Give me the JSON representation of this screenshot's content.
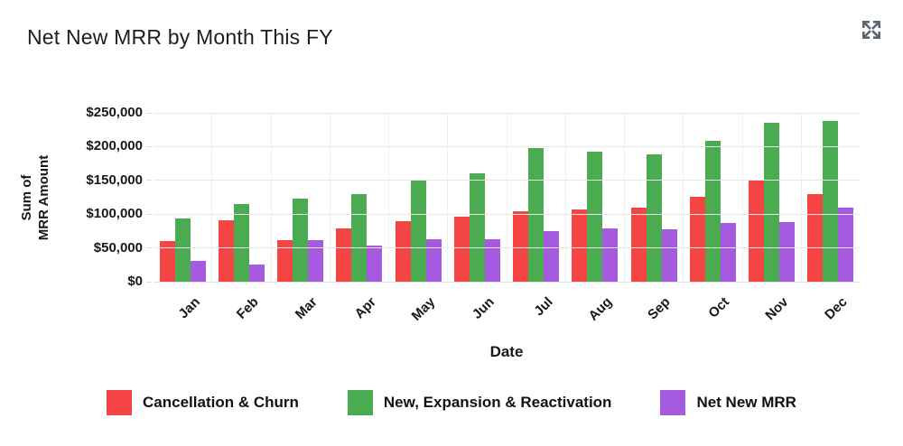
{
  "header": {
    "title": "Net New MRR by Month This FY"
  },
  "icons": {
    "expand": "expand-icon"
  },
  "colors": {
    "series_red": "#f54444",
    "series_green": "#4bab51",
    "series_purple": "#a55ae0",
    "grid": "#e8e8e8",
    "baseline": "#dde2e7",
    "icon": "#5c6670",
    "text": "#15181c"
  },
  "chart_data": {
    "type": "bar",
    "title": "Net New MRR by Month This FY",
    "xlabel": "Date",
    "ylabel": "Sum of MRR Amount",
    "ylabel_lines": [
      "Sum of",
      "MRR Amount"
    ],
    "ylim": [
      0,
      250000
    ],
    "y_ticks": [
      "$250,000",
      "$200,000",
      "$150,000",
      "$100,000",
      "$50,000",
      "$0"
    ],
    "grid": "horizontal",
    "legend_position": "bottom",
    "categories": [
      "Jan",
      "Feb",
      "Mar",
      "Apr",
      "May",
      "Jun",
      "Jul",
      "Aug",
      "Sep",
      "Oct",
      "Nov",
      "Dec"
    ],
    "series": [
      {
        "name": "Cancellation & Churn",
        "color": "#f54444",
        "values": [
          60000,
          91000,
          61000,
          79000,
          90000,
          96000,
          104000,
          107000,
          110000,
          126000,
          151000,
          130000
        ]
      },
      {
        "name": "New, Expansion & Reactivation",
        "color": "#4bab51",
        "values": [
          94000,
          115000,
          123000,
          130000,
          151000,
          160000,
          198000,
          193000,
          188000,
          209000,
          235000,
          238000
        ]
      },
      {
        "name": "Net New MRR",
        "color": "#a55ae0",
        "values": [
          31000,
          26000,
          61000,
          53000,
          63000,
          63000,
          75000,
          79000,
          78000,
          87000,
          88000,
          110000
        ]
      }
    ]
  }
}
